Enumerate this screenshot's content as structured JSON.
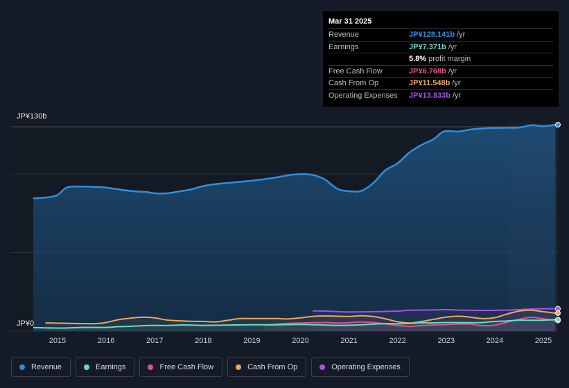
{
  "tooltip": {
    "date": "Mar 31 2025",
    "rows": [
      {
        "label": "Revenue",
        "value": "JP¥128.141b",
        "unit": "/yr",
        "color": "#2f8fdf"
      },
      {
        "label": "Earnings",
        "value": "JP¥7.371b",
        "unit": "/yr",
        "color": "#5fe0c8"
      },
      {
        "label": "",
        "value": "5.8%",
        "unit": "profit margin",
        "color": "#ffffff"
      },
      {
        "label": "Free Cash Flow",
        "value": "JP¥6.768b",
        "unit": "/yr",
        "color": "#e0528a"
      },
      {
        "label": "Cash From Op",
        "value": "JP¥11.548b",
        "unit": "/yr",
        "color": "#eaa85a"
      },
      {
        "label": "Operating Expenses",
        "value": "JP¥13.833b",
        "unit": "/yr",
        "color": "#a553ea"
      }
    ]
  },
  "legend": [
    {
      "label": "Revenue",
      "color": "#2f8fdf"
    },
    {
      "label": "Earnings",
      "color": "#5fe0c8"
    },
    {
      "label": "Free Cash Flow",
      "color": "#e0528a"
    },
    {
      "label": "Cash From Op",
      "color": "#eaa85a"
    },
    {
      "label": "Operating Expenses",
      "color": "#a553ea"
    }
  ],
  "chart_data": {
    "type": "area",
    "title": "",
    "y_top_label": "JP¥130b",
    "y_bottom_label": "JP¥0",
    "ylim": [
      0,
      130
    ],
    "xlim": [
      2014.5,
      2025.3
    ],
    "x_ticks": [
      "2015",
      "2016",
      "2017",
      "2018",
      "2019",
      "2020",
      "2021",
      "2022",
      "2023",
      "2024",
      "2025"
    ],
    "series": [
      {
        "name": "Revenue",
        "color": "#2f8fdf",
        "area": true,
        "points": [
          [
            2014.5,
            84.5
          ],
          [
            2014.8,
            85.2
          ],
          [
            2015.0,
            86.6
          ],
          [
            2015.2,
            91.5
          ],
          [
            2015.5,
            92.0
          ],
          [
            2015.8,
            91.7
          ],
          [
            2016.0,
            91.3
          ],
          [
            2016.5,
            89.2
          ],
          [
            2016.8,
            88.6
          ],
          [
            2017.0,
            87.7
          ],
          [
            2017.25,
            87.7
          ],
          [
            2017.5,
            88.9
          ],
          [
            2017.75,
            90.2
          ],
          [
            2018.0,
            92.3
          ],
          [
            2018.25,
            93.5
          ],
          [
            2018.5,
            94.3
          ],
          [
            2019.0,
            95.7
          ],
          [
            2019.5,
            97.8
          ],
          [
            2019.8,
            99.4
          ],
          [
            2020.1,
            99.9
          ],
          [
            2020.3,
            99.0
          ],
          [
            2020.5,
            96.6
          ],
          [
            2020.65,
            92.9
          ],
          [
            2020.8,
            90.0
          ],
          [
            2021.0,
            89.0
          ],
          [
            2021.25,
            89.2
          ],
          [
            2021.5,
            94.2
          ],
          [
            2021.75,
            102.4
          ],
          [
            2022.0,
            106.8
          ],
          [
            2022.25,
            113.8
          ],
          [
            2022.5,
            118.6
          ],
          [
            2022.75,
            122.3
          ],
          [
            2022.95,
            127.0
          ],
          [
            2023.25,
            127.0
          ],
          [
            2023.5,
            128.3
          ],
          [
            2023.75,
            128.9
          ],
          [
            2024.0,
            129.3
          ],
          [
            2024.5,
            129.5
          ],
          [
            2024.75,
            131.0
          ],
          [
            2025.0,
            130.4
          ],
          [
            2025.25,
            131.3
          ]
        ]
      },
      {
        "name": "Operating Expenses",
        "color": "#a553ea",
        "area": false,
        "points": [
          [
            2020.25,
            12.9
          ],
          [
            2020.5,
            12.8
          ],
          [
            2020.8,
            12.4
          ],
          [
            2021.0,
            12.2
          ],
          [
            2021.5,
            12.4
          ],
          [
            2022.0,
            12.8
          ],
          [
            2022.25,
            13.3
          ],
          [
            2022.75,
            13.5
          ],
          [
            2023.0,
            13.7
          ],
          [
            2023.25,
            13.4
          ],
          [
            2023.75,
            13.2
          ],
          [
            2024.25,
            13.4
          ],
          [
            2024.75,
            14.1
          ],
          [
            2025.0,
            14.3
          ],
          [
            2025.25,
            14.3
          ]
        ]
      },
      {
        "name": "Cash From Op",
        "color": "#eaa85a",
        "area": false,
        "points": [
          [
            2014.75,
            5.3
          ],
          [
            2015.0,
            5.1
          ],
          [
            2015.5,
            4.8
          ],
          [
            2015.8,
            4.8
          ],
          [
            2016.0,
            5.5
          ],
          [
            2016.25,
            7.3
          ],
          [
            2016.5,
            8.3
          ],
          [
            2016.75,
            8.9
          ],
          [
            2017.0,
            8.5
          ],
          [
            2017.25,
            7.1
          ],
          [
            2017.5,
            6.6
          ],
          [
            2017.75,
            6.3
          ],
          [
            2018.0,
            6.2
          ],
          [
            2018.25,
            5.9
          ],
          [
            2018.5,
            6.9
          ],
          [
            2018.75,
            8.0
          ],
          [
            2019.0,
            8.0
          ],
          [
            2019.5,
            8.0
          ],
          [
            2019.75,
            7.8
          ],
          [
            2020.0,
            8.5
          ],
          [
            2020.25,
            9.4
          ],
          [
            2020.5,
            9.7
          ],
          [
            2021.0,
            9.4
          ],
          [
            2021.25,
            9.8
          ],
          [
            2021.5,
            9.3
          ],
          [
            2021.75,
            7.9
          ],
          [
            2022.0,
            6.0
          ],
          [
            2022.25,
            5.2
          ],
          [
            2022.5,
            6.2
          ],
          [
            2022.75,
            7.6
          ],
          [
            2023.0,
            8.9
          ],
          [
            2023.25,
            9.5
          ],
          [
            2023.5,
            8.9
          ],
          [
            2023.75,
            8.0
          ],
          [
            2024.0,
            8.6
          ],
          [
            2024.25,
            10.9
          ],
          [
            2024.5,
            12.8
          ],
          [
            2024.75,
            13.3
          ],
          [
            2025.0,
            12.4
          ],
          [
            2025.25,
            11.5
          ]
        ]
      },
      {
        "name": "Free Cash Flow",
        "color": "#e0528a",
        "area": false,
        "points": [
          [
            2019.25,
            3.9
          ],
          [
            2019.5,
            4.5
          ],
          [
            2019.75,
            5.0
          ],
          [
            2020.0,
            5.2
          ],
          [
            2020.25,
            5.4
          ],
          [
            2020.5,
            5.5
          ],
          [
            2020.75,
            5.2
          ],
          [
            2021.0,
            5.4
          ],
          [
            2021.25,
            5.9
          ],
          [
            2021.5,
            5.5
          ],
          [
            2021.75,
            4.6
          ],
          [
            2022.0,
            3.7
          ],
          [
            2022.25,
            3.0
          ],
          [
            2022.5,
            3.6
          ],
          [
            2022.75,
            4.0
          ],
          [
            2023.0,
            4.2
          ],
          [
            2023.25,
            4.6
          ],
          [
            2023.5,
            4.5
          ],
          [
            2023.75,
            3.5
          ],
          [
            2024.0,
            3.8
          ],
          [
            2024.25,
            5.7
          ],
          [
            2024.5,
            7.5
          ],
          [
            2024.75,
            8.8
          ],
          [
            2025.0,
            7.9
          ],
          [
            2025.25,
            6.8
          ]
        ]
      },
      {
        "name": "Earnings",
        "color": "#5fe0c8",
        "area": false,
        "points": [
          [
            2014.5,
            2.3
          ],
          [
            2015.0,
            2.0
          ],
          [
            2015.25,
            2.1
          ],
          [
            2015.5,
            2.4
          ],
          [
            2016.0,
            2.4
          ],
          [
            2016.25,
            2.9
          ],
          [
            2016.5,
            3.1
          ],
          [
            2016.75,
            3.5
          ],
          [
            2017.0,
            3.7
          ],
          [
            2017.25,
            3.6
          ],
          [
            2017.5,
            3.9
          ],
          [
            2017.75,
            3.9
          ],
          [
            2018.0,
            3.7
          ],
          [
            2018.25,
            3.8
          ],
          [
            2018.5,
            3.9
          ],
          [
            2019.0,
            4.1
          ],
          [
            2019.5,
            4.0
          ],
          [
            2020.0,
            4.3
          ],
          [
            2020.5,
            3.9
          ],
          [
            2020.75,
            3.7
          ],
          [
            2021.0,
            3.8
          ],
          [
            2021.25,
            4.1
          ],
          [
            2021.5,
            4.5
          ],
          [
            2021.75,
            4.8
          ],
          [
            2022.0,
            4.7
          ],
          [
            2022.25,
            4.9
          ],
          [
            2022.5,
            5.3
          ],
          [
            2022.75,
            5.3
          ],
          [
            2023.0,
            5.5
          ],
          [
            2023.5,
            5.4
          ],
          [
            2023.75,
            5.5
          ],
          [
            2024.0,
            6.2
          ],
          [
            2024.25,
            6.5
          ],
          [
            2024.5,
            7.0
          ],
          [
            2024.75,
            6.9
          ],
          [
            2025.0,
            7.0
          ],
          [
            2025.25,
            7.4
          ]
        ]
      }
    ]
  }
}
